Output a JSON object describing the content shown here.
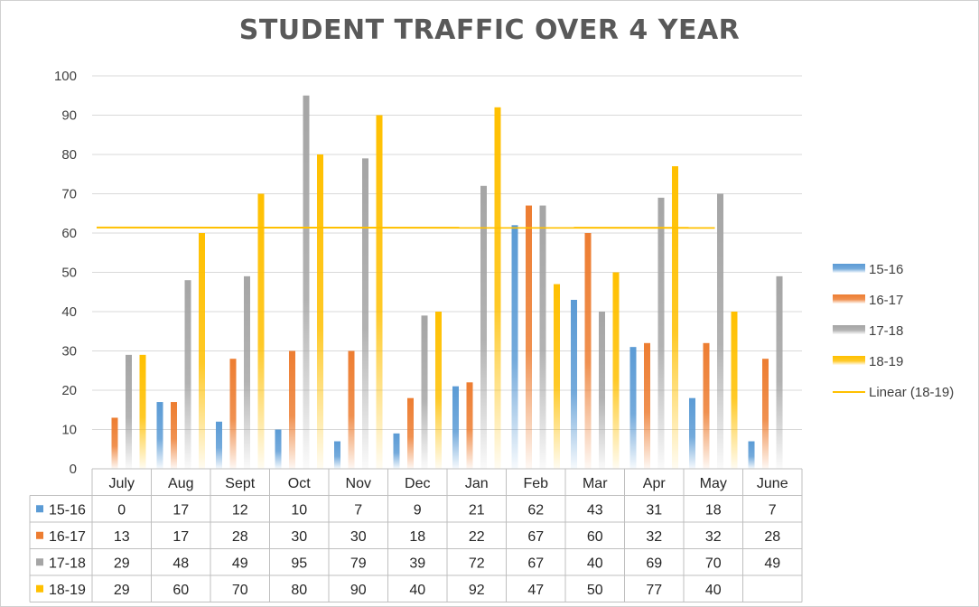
{
  "chart_data": {
    "type": "bar",
    "title": "STUDENT TRAFFIC OVER 4 YEAR",
    "categories": [
      "July",
      "Aug",
      "Sept",
      "Oct",
      "Nov",
      "Dec",
      "Jan",
      "Feb",
      "Mar",
      "Apr",
      "May",
      "June"
    ],
    "series": [
      {
        "name": "15-16",
        "color": "#5B9BD5",
        "values": [
          0,
          17,
          12,
          10,
          7,
          9,
          21,
          62,
          43,
          31,
          18,
          7
        ]
      },
      {
        "name": "16-17",
        "color": "#ED7D31",
        "values": [
          13,
          17,
          28,
          30,
          30,
          18,
          22,
          67,
          60,
          32,
          32,
          28
        ]
      },
      {
        "name": "17-18",
        "color": "#A5A5A5",
        "values": [
          29,
          48,
          49,
          95,
          79,
          39,
          72,
          67,
          40,
          69,
          70,
          49
        ]
      },
      {
        "name": "18-19",
        "color": "#FFC000",
        "values": [
          29,
          60,
          70,
          80,
          90,
          40,
          92,
          47,
          50,
          77,
          40,
          null
        ]
      }
    ],
    "trendline": {
      "name": "Linear (18-19)",
      "series": "18-19",
      "type": "linear",
      "color": "#FFC000"
    },
    "ylim": [
      0,
      100
    ],
    "yticks": [
      0,
      10,
      20,
      30,
      40,
      50,
      60,
      70,
      80,
      90,
      100
    ],
    "grid": true,
    "legend": "right",
    "data_table": true
  }
}
